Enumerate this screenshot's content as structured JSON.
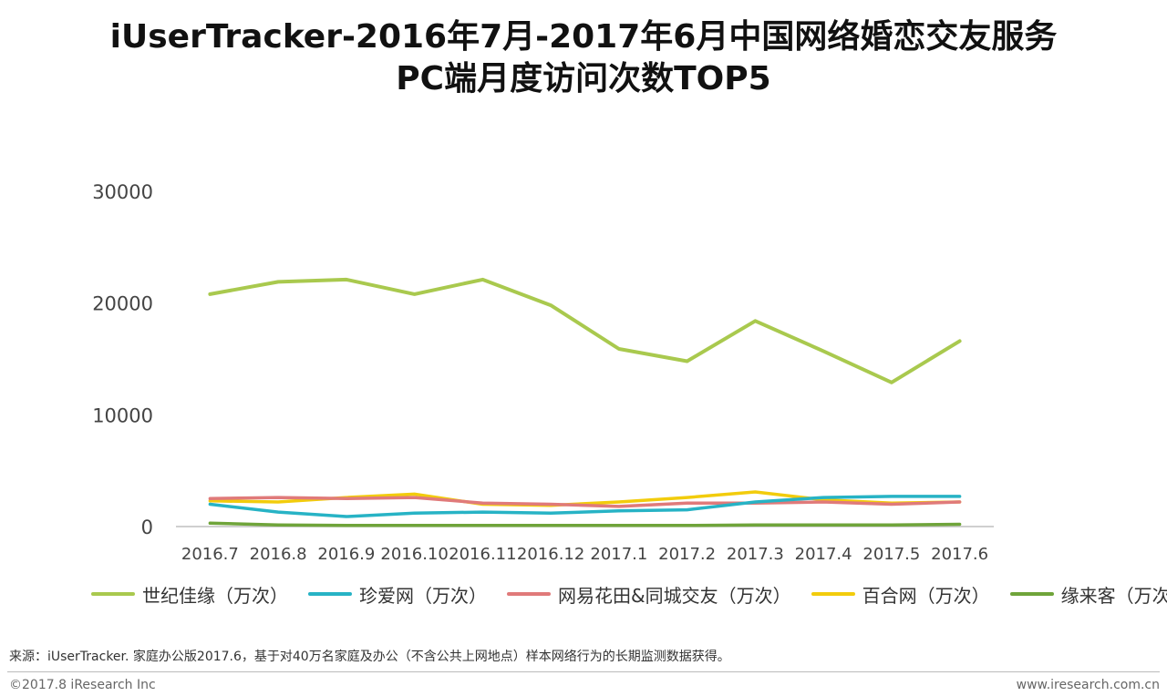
{
  "title_line1": "iUserTracker-2016年7月-2017年6月中国网络婚恋交友服务",
  "title_line2": "PC端月度访问次数TOP5",
  "source": "来源：iUserTracker. 家庭办公版2017.6，基于对40万名家庭及办公（不含公共上网地点）样本网络行为的长期监测数据获得。",
  "footer_left": "©2017.8 iResearch Inc",
  "footer_right": "www.iresearch.com.cn",
  "chart_data": {
    "type": "line",
    "title": "iUserTracker-2016年7月-2017年6月中国网络婚恋交友服务PC端月度访问次数TOP5",
    "xlabel": "",
    "ylabel": "",
    "ylim": [
      0,
      30000
    ],
    "yticks": [
      0,
      10000,
      20000,
      30000
    ],
    "grid": false,
    "legend_position": "bottom",
    "categories": [
      "2016.7",
      "2016.8",
      "2016.9",
      "2016.10",
      "2016.11",
      "2016.12",
      "2017.1",
      "2017.2",
      "2017.3",
      "2017.4",
      "2017.5",
      "2017.6"
    ],
    "series": [
      {
        "name": "世纪佳缘（万次）",
        "color": "#a9c94e",
        "values": [
          20800,
          21900,
          22100,
          20800,
          22100,
          19800,
          15900,
          14800,
          18400,
          15700,
          12900,
          16600
        ]
      },
      {
        "name": "珍爱网（万次）",
        "color": "#27b3c5",
        "values": [
          2000,
          1300,
          900,
          1200,
          1300,
          1200,
          1400,
          1500,
          2200,
          2600,
          2700,
          2700
        ]
      },
      {
        "name": "网易花田&同城交友（万次）",
        "color": "#e07a7a",
        "values": [
          2500,
          2600,
          2500,
          2600,
          2100,
          2000,
          1800,
          2100,
          2100,
          2200,
          2000,
          2200
        ]
      },
      {
        "name": "百合网（万次）",
        "color": "#f2cc0c",
        "values": [
          2300,
          2200,
          2600,
          2900,
          2000,
          1900,
          2200,
          2600,
          3100,
          2400,
          2100,
          2200
        ]
      },
      {
        "name": "缘来客（万次）",
        "color": "#6fa43a",
        "values": [
          300,
          150,
          100,
          100,
          100,
          100,
          100,
          100,
          150,
          150,
          150,
          200
        ]
      }
    ]
  }
}
